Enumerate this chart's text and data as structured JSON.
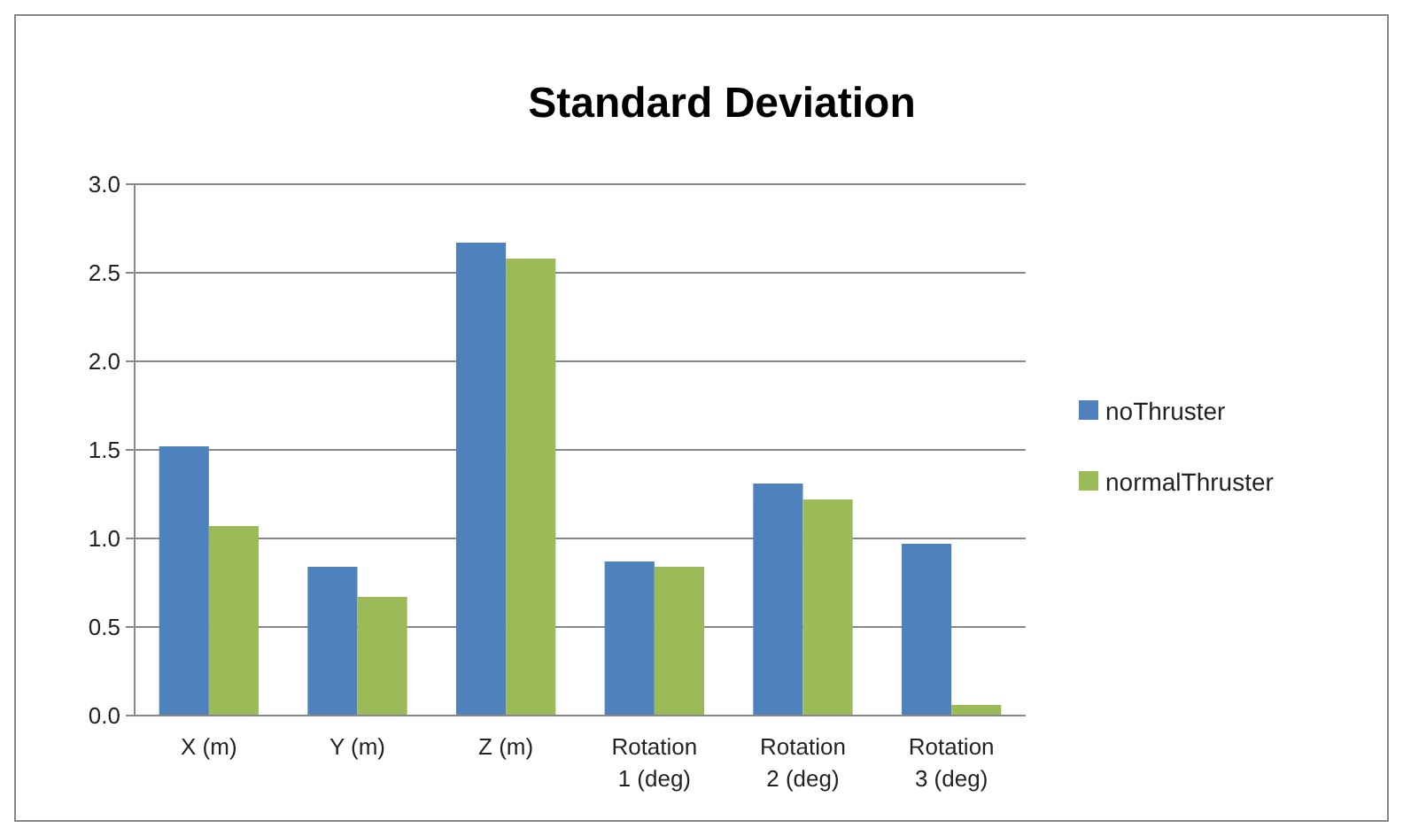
{
  "chart_data": {
    "type": "bar",
    "title": "Standard Deviation",
    "categories": [
      "X (m)",
      "Y (m)",
      "Z (m)",
      "Rotation 1 (deg)",
      "Rotation 2 (deg)",
      "Rotation 3 (deg)"
    ],
    "series": [
      {
        "name": "noThruster",
        "color": "#4f81bd",
        "values": [
          1.52,
          0.84,
          2.67,
          0.87,
          1.31,
          0.97
        ]
      },
      {
        "name": "normalThruster",
        "color": "#9bbb59",
        "values": [
          1.07,
          0.67,
          2.58,
          0.84,
          1.22,
          0.06
        ]
      }
    ],
    "ylim": [
      0,
      3
    ],
    "yticks": [
      {
        "value": 0,
        "label": "0.0"
      },
      {
        "value": 0.5,
        "label": "0.5"
      },
      {
        "value": 1,
        "label": "1.0"
      },
      {
        "value": 1.5,
        "label": "1.5"
      },
      {
        "value": 2,
        "label": "2.0"
      },
      {
        "value": 2.5,
        "label": "2.5"
      },
      {
        "value": 3,
        "label": "3.0"
      }
    ],
    "grid": "y",
    "legend": "right"
  }
}
